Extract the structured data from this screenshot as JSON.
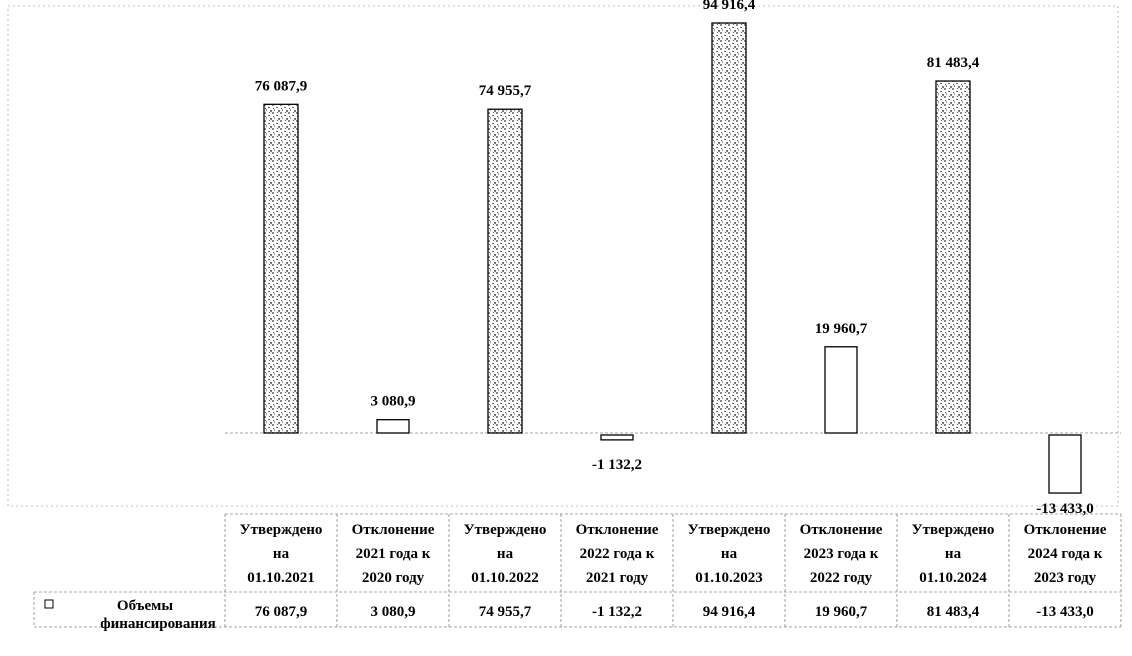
{
  "chart_data": {
    "type": "bar",
    "categories": [
      [
        "Утверждено",
        "на",
        "01.10.2021"
      ],
      [
        "Отклонение",
        "2021 года к",
        "2020 году"
      ],
      [
        "Утверждено",
        "на",
        "01.10.2022"
      ],
      [
        "Отклонение",
        "2022 года к",
        "2021 году"
      ],
      [
        "Утверждено",
        "на",
        "01.10.2023"
      ],
      [
        "Отклонение",
        "2023 года к",
        "2022 году"
      ],
      [
        "Утверждено",
        "на",
        "01.10.2024"
      ],
      [
        "Отклонение",
        "2024 года к",
        "2023 году"
      ]
    ],
    "series": [
      {
        "name": "Объемы финансирования",
        "values": [
          76087.9,
          3080.9,
          74955.7,
          -1132.2,
          94916.4,
          19960.7,
          81483.4,
          -13433.0
        ]
      }
    ],
    "value_labels": [
      "76 087,9",
      "3 080,9",
      "74 955,7",
      "-1 132,2",
      "94 916,4",
      "19 960,7",
      "81 483,4",
      "-13 433,0"
    ],
    "legend": [
      "Объемы",
      "финансирования"
    ],
    "bar_styles": [
      "textured",
      "outline",
      "textured",
      "outline",
      "textured",
      "outline",
      "textured",
      "outline"
    ],
    "grid": false,
    "data_table": true,
    "colors": {
      "ink": "#000000",
      "texture_fill": "#b9b9b9",
      "plain_fill": "#ffffff",
      "gridline": "#888888"
    }
  }
}
